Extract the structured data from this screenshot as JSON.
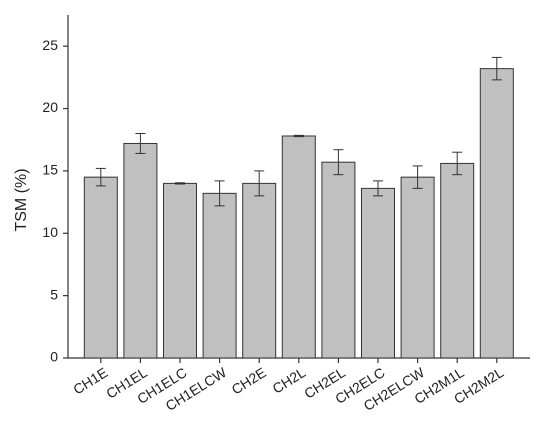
{
  "chart_data": {
    "type": "bar",
    "ylabel": "TSM (%)",
    "categories": [
      "CH1E",
      "CH1EL",
      "CH1ELC",
      "CH1ELCW",
      "CH2E",
      "CH2L",
      "CH2EL",
      "CH2ELC",
      "CH2ELCW",
      "CH2M1L",
      "CH2M2L"
    ],
    "values": [
      14.5,
      17.2,
      14.0,
      13.2,
      14.0,
      17.8,
      15.7,
      13.6,
      14.5,
      15.6,
      23.2
    ],
    "errors": [
      0.7,
      0.8,
      0.05,
      1.0,
      1.0,
      0.05,
      1.0,
      0.6,
      0.9,
      0.9,
      0.9
    ],
    "color": "#c0c0c0",
    "ylim": [
      0,
      27.5
    ],
    "yticks": [
      0,
      5,
      10,
      15,
      20,
      25
    ],
    "grid": false
  }
}
